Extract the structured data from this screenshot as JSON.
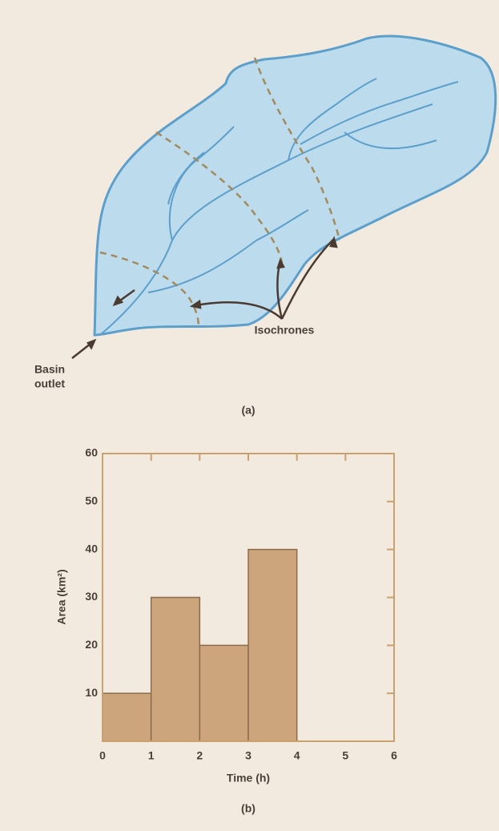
{
  "diagram": {
    "isochrones_label": "Isochrones",
    "outlet_label": [
      "Basin",
      "outlet"
    ],
    "caption": "(a)"
  },
  "chart_data": {
    "type": "histogram",
    "caption": "(b)",
    "x_label": "Time (h)",
    "y_label": "Area (km²)",
    "bins": [
      0,
      1,
      2,
      3,
      4
    ],
    "values": [
      10,
      30,
      20,
      40
    ],
    "color": "#cda57d",
    "edge_color": "#8c6b4c",
    "frame_color": "#c9a06e",
    "xlim": [
      0,
      6
    ],
    "xticks": [
      0,
      1,
      2,
      3,
      4,
      5,
      6
    ],
    "ylim": [
      0,
      60
    ],
    "yticks": [
      10,
      20,
      30,
      40,
      50,
      60
    ]
  }
}
